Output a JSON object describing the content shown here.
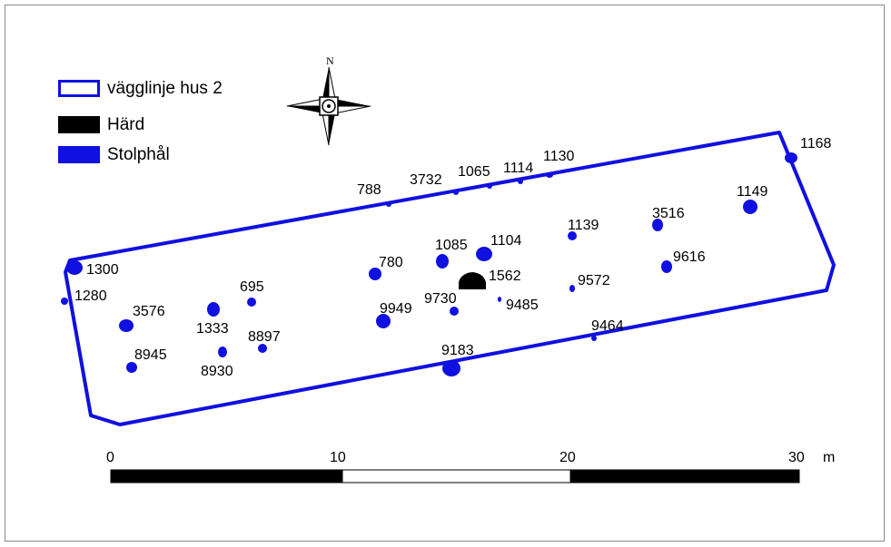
{
  "legend": {
    "items": [
      {
        "label": "vägglinje hus 2",
        "color": "#1010e0",
        "style": "outline"
      },
      {
        "label": "Härd",
        "color": "#000000",
        "style": "fill"
      },
      {
        "label": "Stolphål",
        "color": "#1010e0",
        "style": "fill"
      }
    ]
  },
  "north_arrow": {
    "letter": "N",
    "icon": "north-arrow-icon"
  },
  "wall_line": {
    "label": "vägglinje hus 2",
    "color": "#1010e0"
  },
  "hearth": {
    "label": "1562",
    "color": "#000000"
  },
  "postholes": [
    {
      "id": "1300"
    },
    {
      "id": "1280"
    },
    {
      "id": "3576"
    },
    {
      "id": "8945"
    },
    {
      "id": "1333"
    },
    {
      "id": "695"
    },
    {
      "id": "8930"
    },
    {
      "id": "8897"
    },
    {
      "id": "788"
    },
    {
      "id": "780"
    },
    {
      "id": "9949"
    },
    {
      "id": "3732"
    },
    {
      "id": "1065"
    },
    {
      "id": "1114"
    },
    {
      "id": "1130"
    },
    {
      "id": "1085"
    },
    {
      "id": "1104"
    },
    {
      "id": "9730"
    },
    {
      "id": "9485"
    },
    {
      "id": "9183"
    },
    {
      "id": "1139"
    },
    {
      "id": "9572"
    },
    {
      "id": "9464"
    },
    {
      "id": "3516"
    },
    {
      "id": "9616"
    },
    {
      "id": "1149"
    },
    {
      "id": "1168"
    }
  ],
  "scale_bar": {
    "ticks": [
      "0",
      "10",
      "20",
      "30"
    ],
    "unit": "m",
    "colors": {
      "dark": "#000000",
      "light": "#ffffff"
    }
  },
  "colors": {
    "posthole": "#1010e0",
    "hearth": "#000000",
    "wall": "#1010e0"
  }
}
